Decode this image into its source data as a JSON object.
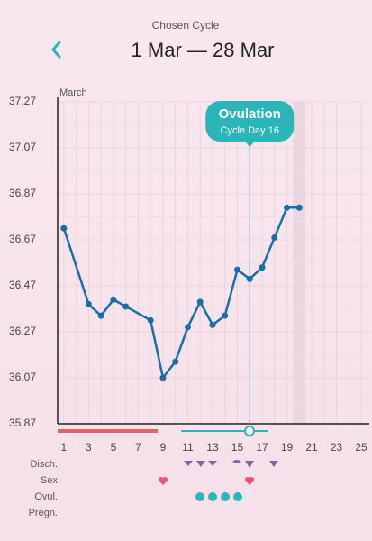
{
  "header": {
    "subtitle": "Chosen Cycle",
    "title": "1 Mar — 28 Mar"
  },
  "chart_data": {
    "type": "line",
    "x_label": "March",
    "x": [
      1,
      3,
      4,
      5,
      6,
      8,
      9,
      10,
      11,
      12,
      13,
      14,
      15,
      16,
      17,
      18,
      19,
      20
    ],
    "values": [
      36.72,
      36.39,
      36.34,
      36.41,
      36.38,
      36.32,
      36.07,
      36.14,
      36.29,
      36.4,
      36.3,
      36.34,
      36.54,
      36.5,
      36.55,
      36.68,
      36.81,
      36.81
    ],
    "color": "#1a6ea3",
    "xlim": [
      0.5,
      25.65
    ],
    "xticks": [
      1,
      3,
      5,
      7,
      9,
      11,
      13,
      15,
      17,
      19,
      21,
      23,
      25
    ],
    "ylim": [
      35.87,
      37.27
    ],
    "yticks": [
      35.87,
      36.07,
      36.27,
      36.47,
      36.67,
      36.87,
      37.07,
      37.27
    ],
    "grid": true,
    "highlight_day": 20,
    "ovulation": {
      "label": "Ovulation",
      "sublabel": "Cycle Day 16",
      "day": 16,
      "color": "#2bb5b8"
    },
    "rows": [
      "Disch.",
      "Sex",
      "Ovul.",
      "Pregn."
    ]
  }
}
